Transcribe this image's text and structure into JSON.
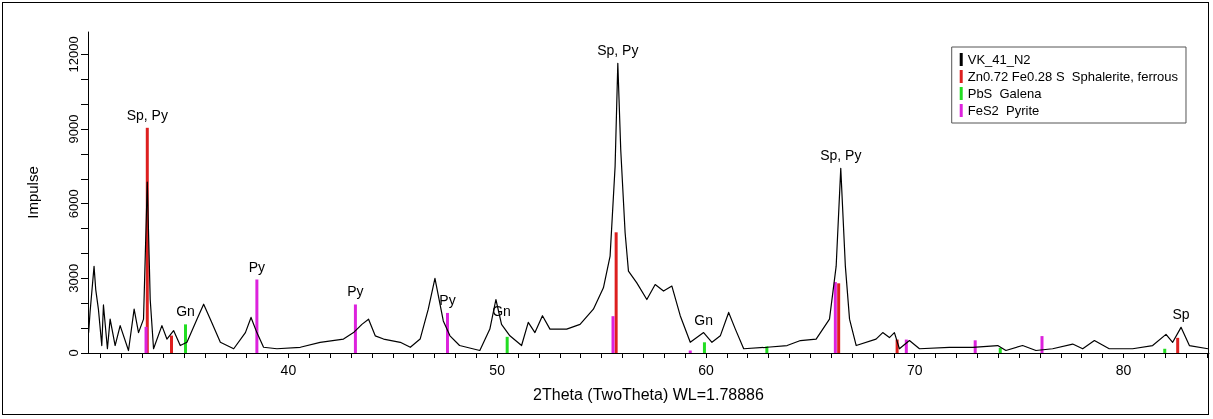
{
  "chart_data": {
    "type": "line",
    "xlabel": "2Theta (TwoTheta) WL=1.78886",
    "ylabel": "Impulse",
    "xlim": [
      30.4,
      84.1
    ],
    "xticks": [
      {
        "value": 31,
        "label": null
      },
      {
        "value": 32,
        "label": null
      },
      {
        "value": 33,
        "label": null
      },
      {
        "value": 34,
        "label": null
      },
      {
        "value": 35,
        "label": null
      },
      {
        "value": 36,
        "label": null
      },
      {
        "value": 37,
        "label": null
      },
      {
        "value": 38,
        "label": null
      },
      {
        "value": 39,
        "label": null
      },
      40,
      {
        "value": 41,
        "label": null
      },
      {
        "value": 42,
        "label": null
      },
      {
        "value": 43,
        "label": null
      },
      {
        "value": 44,
        "label": null
      },
      {
        "value": 45,
        "label": null
      },
      {
        "value": 46,
        "label": null
      },
      {
        "value": 47,
        "label": null
      },
      {
        "value": 48,
        "label": null
      },
      {
        "value": 49,
        "label": null
      },
      50,
      {
        "value": 51,
        "label": null
      },
      {
        "value": 52,
        "label": null
      },
      {
        "value": 53,
        "label": null
      },
      {
        "value": 54,
        "label": null
      },
      {
        "value": 55,
        "label": null
      },
      {
        "value": 56,
        "label": null
      },
      {
        "value": 57,
        "label": null
      },
      {
        "value": 58,
        "label": null
      },
      {
        "value": 59,
        "label": null
      },
      60,
      {
        "value": 61,
        "label": null
      },
      {
        "value": 62,
        "label": null
      },
      {
        "value": 63,
        "label": null
      },
      {
        "value": 64,
        "label": null
      },
      {
        "value": 65,
        "label": null
      },
      {
        "value": 66,
        "label": null
      },
      {
        "value": 67,
        "label": null
      },
      {
        "value": 68,
        "label": null
      },
      {
        "value": 69,
        "label": null
      },
      70,
      {
        "value": 71,
        "label": null
      },
      {
        "value": 72,
        "label": null
      },
      {
        "value": 73,
        "label": null
      },
      {
        "value": 74,
        "label": null
      },
      {
        "value": 75,
        "label": null
      },
      {
        "value": 76,
        "label": null
      },
      {
        "value": 77,
        "label": null
      },
      {
        "value": 78,
        "label": null
      },
      {
        "value": 79,
        "label": null
      },
      80,
      {
        "value": 81,
        "label": null
      },
      {
        "value": 82,
        "label": null
      },
      {
        "value": 83,
        "label": null
      },
      {
        "value": 84,
        "label": null
      }
    ],
    "ylim": [
      0,
      12900
    ],
    "yticks": [
      0,
      {
        "value": 1000,
        "label": null
      },
      {
        "value": 2000,
        "label": null
      },
      3000,
      {
        "value": 4000,
        "label": null
      },
      {
        "value": 5000,
        "label": null
      },
      6000,
      {
        "value": 7000,
        "label": null
      },
      {
        "value": 8000,
        "label": null
      },
      9000,
      {
        "value": 10000,
        "label": null
      },
      {
        "value": 11000,
        "label": null
      },
      12000
    ],
    "grid": false,
    "legend": "top right",
    "marker": "none",
    "line_style": "solid",
    "series": [
      {
        "name": "VK_41_N2",
        "color": "#000000",
        "x": [
          30.43,
          30.5,
          30.69,
          30.77,
          30.9,
          31.06,
          31.14,
          31.33,
          31.46,
          31.7,
          31.94,
          32.34,
          32.61,
          32.82,
          33.06,
          33.24,
          33.38,
          33.54,
          33.94,
          34.18,
          34.5,
          34.82,
          35.14,
          35.62,
          35.94,
          36.26,
          36.74,
          37.38,
          37.94,
          38.21,
          38.49,
          38.81,
          39.45,
          40.57,
          41.52,
          42.64,
          43.12,
          43.52,
          43.84,
          44.16,
          44.56,
          45.36,
          45.84,
          46.31,
          46.7,
          47.02,
          47.42,
          47.74,
          48.2,
          49.17,
          49.65,
          49.94,
          50.21,
          50.61,
          51.17,
          51.49,
          51.81,
          52.17,
          52.53,
          53.33,
          53.97,
          54.61,
          55.09,
          55.41,
          55.65,
          55.78,
          55.92,
          56.13,
          56.29,
          56.69,
          57.17,
          57.57,
          57.97,
          58.37,
          58.77,
          59.25,
          59.89,
          60.29,
          60.69,
          61.09,
          61.41,
          61.81,
          62.93,
          63.89,
          64.53,
          65.28,
          65.92,
          66.24,
          66.46,
          66.68,
          66.88,
          67.2,
          68.15,
          68.47,
          68.79,
          69.03,
          69.27,
          69.75,
          70.23,
          71.66,
          72.78,
          73.98,
          74.37,
          75.17,
          75.81,
          76.61,
          77.57,
          78.05,
          78.61,
          79.32,
          80.44,
          81.4,
          82.04,
          82.36,
          82.76,
          83.16,
          84.05
        ],
        "values": [
          820,
          1660,
          3480,
          2550,
          1750,
          300,
          1930,
          170,
          1360,
          300,
          1100,
          100,
          1760,
          820,
          1360,
          6870,
          2150,
          170,
          1100,
          560,
          900,
          300,
          430,
          1360,
          1960,
          1360,
          430,
          170,
          820,
          1430,
          820,
          230,
          170,
          230,
          430,
          560,
          820,
          1150,
          1360,
          690,
          560,
          430,
          230,
          560,
          1760,
          3000,
          1290,
          690,
          300,
          100,
          960,
          2150,
          1150,
          690,
          300,
          1230,
          820,
          1500,
          960,
          960,
          1150,
          1760,
          2620,
          3890,
          7500,
          11640,
          8170,
          4830,
          3290,
          2820,
          2150,
          2750,
          2490,
          2690,
          1500,
          430,
          820,
          430,
          690,
          1630,
          960,
          170,
          230,
          300,
          500,
          560,
          1360,
          3490,
          7420,
          3490,
          1360,
          300,
          560,
          820,
          620,
          820,
          170,
          500,
          170,
          230,
          230,
          300,
          100,
          300,
          100,
          170,
          360,
          170,
          500,
          170,
          170,
          300,
          750,
          430,
          1030,
          300,
          170
        ]
      },
      {
        "name": "Zn0.72 Fe0.28 S  Sphalerite, ferrous",
        "type": "bar",
        "color": "#dd1f1f",
        "x": [
          33.24,
          34.4,
          55.7,
          66.36,
          69.16,
          82.6
        ],
        "values": [
          9050,
          700,
          4850,
          2800,
          540,
          610
        ]
      },
      {
        "name": "PbS  Galena",
        "type": "bar",
        "color": "#22dd22",
        "x": [
          35.07,
          50.48,
          59.93,
          62.92,
          74.1,
          81.98
        ],
        "values": [
          1150,
          650,
          430,
          270,
          200,
          170
        ]
      },
      {
        "name": "FeS2  Pyrite",
        "type": "bar",
        "color": "#dd22dd",
        "x": [
          33.18,
          38.49,
          43.21,
          47.62,
          55.55,
          59.25,
          66.2,
          69.6,
          72.9,
          76.1
        ],
        "values": [
          1050,
          2950,
          1950,
          1610,
          1480,
          100,
          2850,
          540,
          510,
          680
        ]
      }
    ],
    "annotations": [
      {
        "text": "Sp, Py",
        "x": 33.24,
        "y": 9050
      },
      {
        "text": "Gn",
        "x": 35.07,
        "y": 1150
      },
      {
        "text": "Py",
        "x": 38.49,
        "y": 2950
      },
      {
        "text": "Py",
        "x": 43.21,
        "y": 1950
      },
      {
        "text": "Py",
        "x": 47.62,
        "y": 1610
      },
      {
        "text": "Gn",
        "x": 50.21,
        "y": 1150
      },
      {
        "text": "Sp, Py",
        "x": 55.78,
        "y": 11640
      },
      {
        "text": "Gn",
        "x": 59.89,
        "y": 820
      },
      {
        "text": "Sp, Py",
        "x": 66.46,
        "y": 7420
      },
      {
        "text": "Sp",
        "x": 82.76,
        "y": 1030
      }
    ]
  }
}
